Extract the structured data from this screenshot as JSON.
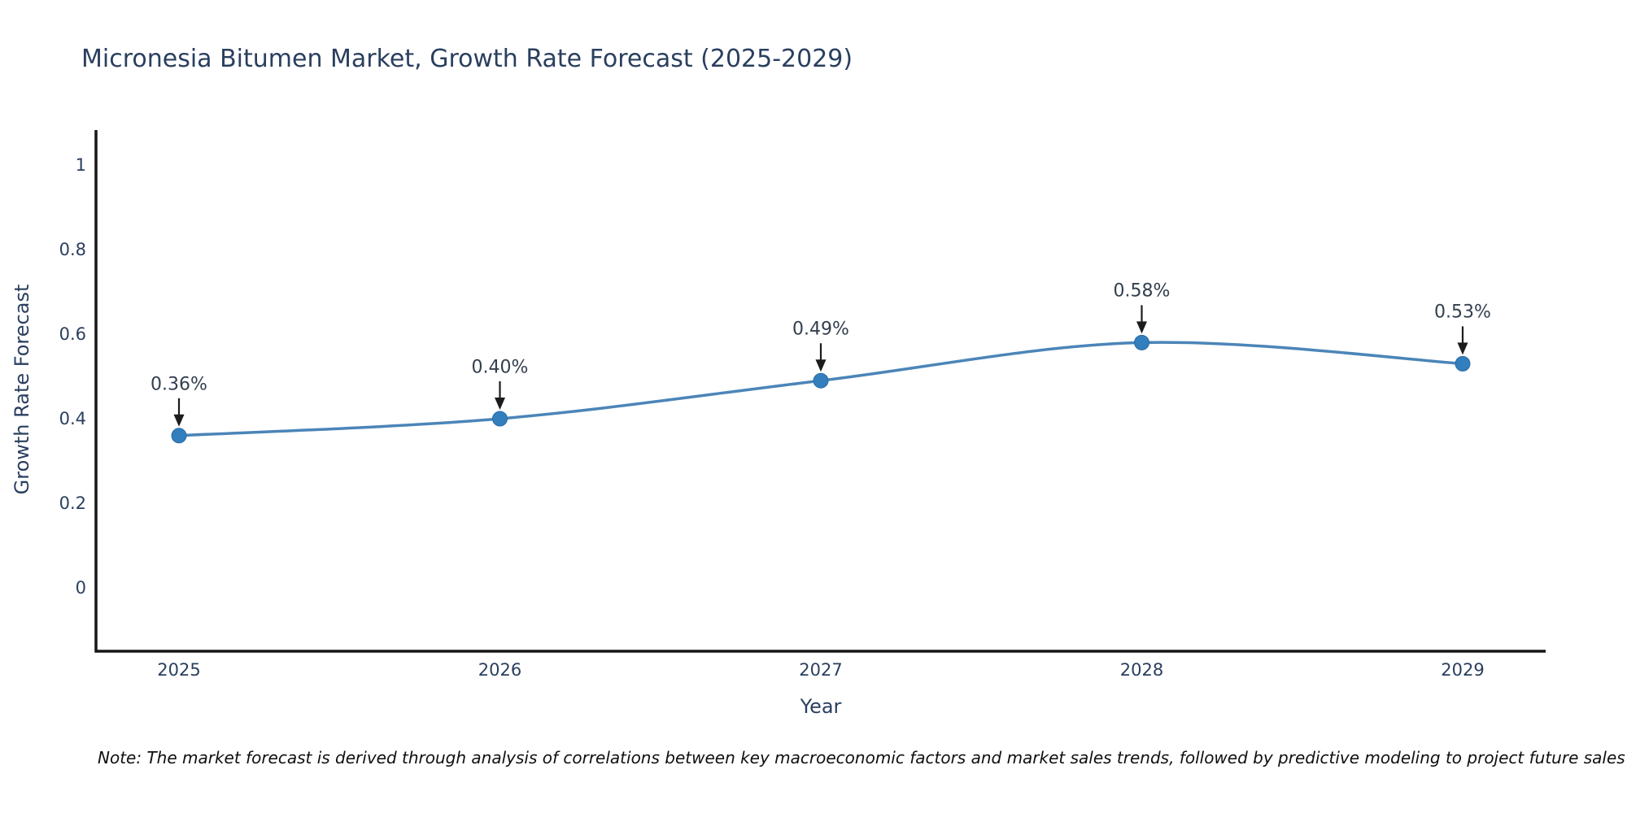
{
  "title": "Micronesia Bitumen Market, Growth Rate Forecast (2025-2029)",
  "note": "Note: The market forecast is derived through analysis of correlations between key macroeconomic factors and market sales trends, followed by predictive modeling to project future sales",
  "chart_data": {
    "type": "line",
    "line_shape": "spline",
    "title": "Micronesia Bitumen Market, Growth Rate Forecast (2025-2029)",
    "xlabel": "Year",
    "ylabel": "Growth Rate Forecast",
    "x": [
      2025,
      2026,
      2027,
      2028,
      2029
    ],
    "values": [
      0.36,
      0.4,
      0.49,
      0.58,
      0.53
    ],
    "point_labels": [
      "0.36%",
      "0.40%",
      "0.49%",
      "0.58%",
      "0.53%"
    ],
    "yticks": [
      0,
      0.2,
      0.4,
      0.6,
      0.8,
      1
    ],
    "ytick_labels": [
      "0",
      "0.2",
      "0.4",
      "0.6",
      "0.8",
      "1"
    ],
    "ylim": [
      -0.15,
      1.08
    ],
    "grid": false,
    "legend": "none",
    "annotations_style": "down-arrow-to-marker",
    "colors": {
      "line": "#4b85b8",
      "marker": "#337ebd",
      "marker_edge": "#2a6ca6",
      "arrow": "#1c1c1c",
      "axis": "#161616",
      "text": "#2a3f5f",
      "value_label_text": "#333f4f",
      "background": "#ffffff"
    }
  }
}
